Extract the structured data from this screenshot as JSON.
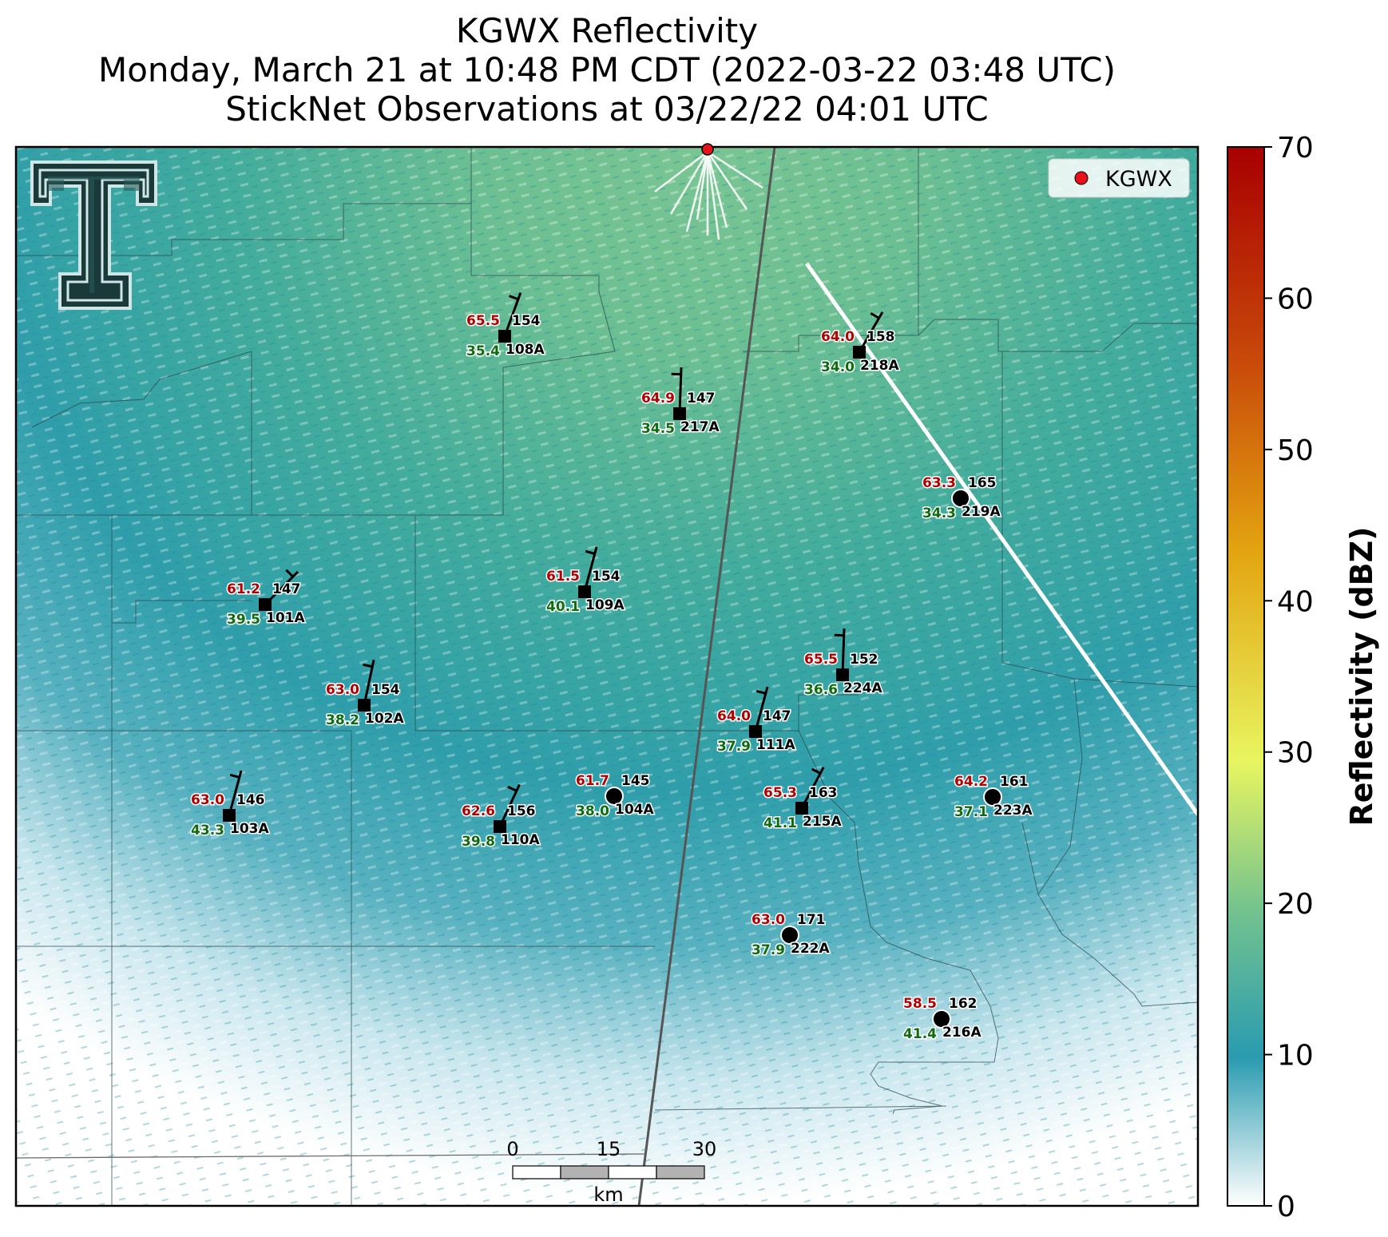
{
  "title": {
    "line1": "KGWX Reflectivity",
    "line2": "Monday, March 21 at 10:48 PM CDT (2022-03-22 03:48 UTC)",
    "line3": "StickNet Observations at 03/22/22 04:01 UTC"
  },
  "legend": {
    "label": "KGWX",
    "marker_color": "#e8111b"
  },
  "colorbar": {
    "label": "Reflectivity (dBZ)",
    "min": 0,
    "max": 70,
    "ticks": [
      "0",
      "10",
      "20",
      "30",
      "40",
      "50",
      "60",
      "70"
    ],
    "colors": [
      "#ffffff",
      "#2a9bb0",
      "#74c38e",
      "#e8f560",
      "#e3a310",
      "#c8480a",
      "#a80000"
    ]
  },
  "scale_bar": {
    "labels": [
      "0",
      "15",
      "30"
    ],
    "unit": "km"
  },
  "logo": {
    "name": "texas-tech-double-t"
  },
  "colors": {
    "temp": "#b10000",
    "dewpoint": "#0f6b0f",
    "station": "#000000"
  },
  "chart_data": {
    "type": "scatter",
    "radar": "KGWX",
    "stations": [
      {
        "id": "108A",
        "temp": "65.5",
        "value": "154",
        "dewpoint": "35.4",
        "marker": "square"
      },
      {
        "id": "218A",
        "temp": "64.0",
        "value": "158",
        "dewpoint": "34.0",
        "marker": "square"
      },
      {
        "id": "217A",
        "temp": "64.9",
        "value": "147",
        "dewpoint": "34.5",
        "marker": "square"
      },
      {
        "id": "219A",
        "temp": "63.3",
        "value": "165",
        "dewpoint": "34.3",
        "marker": "circle"
      },
      {
        "id": "101A",
        "temp": "61.2",
        "value": "147",
        "dewpoint": "39.5",
        "marker": "square"
      },
      {
        "id": "109A",
        "temp": "61.5",
        "value": "154",
        "dewpoint": "40.1",
        "marker": "square"
      },
      {
        "id": "224A",
        "temp": "65.5",
        "value": "152",
        "dewpoint": "36.6",
        "marker": "square"
      },
      {
        "id": "102A",
        "temp": "63.0",
        "value": "154",
        "dewpoint": "38.2",
        "marker": "square"
      },
      {
        "id": "111A",
        "temp": "64.0",
        "value": "147",
        "dewpoint": "37.9",
        "marker": "square"
      },
      {
        "id": "104A",
        "temp": "61.7",
        "value": "145",
        "dewpoint": "38.0",
        "marker": "circle"
      },
      {
        "id": "215A",
        "temp": "65.3",
        "value": "163",
        "dewpoint": "41.1",
        "marker": "square"
      },
      {
        "id": "223A",
        "temp": "64.2",
        "value": "161",
        "dewpoint": "37.1",
        "marker": "circle"
      },
      {
        "id": "103A",
        "temp": "63.0",
        "value": "146",
        "dewpoint": "43.3",
        "marker": "square"
      },
      {
        "id": "110A",
        "temp": "62.6",
        "value": "156",
        "dewpoint": "39.8",
        "marker": "square"
      },
      {
        "id": "222A",
        "temp": "63.0",
        "value": "171",
        "dewpoint": "37.9",
        "marker": "circle"
      },
      {
        "id": "216A",
        "temp": "58.5",
        "value": "162",
        "dewpoint": "41.4",
        "marker": "circle"
      }
    ]
  }
}
